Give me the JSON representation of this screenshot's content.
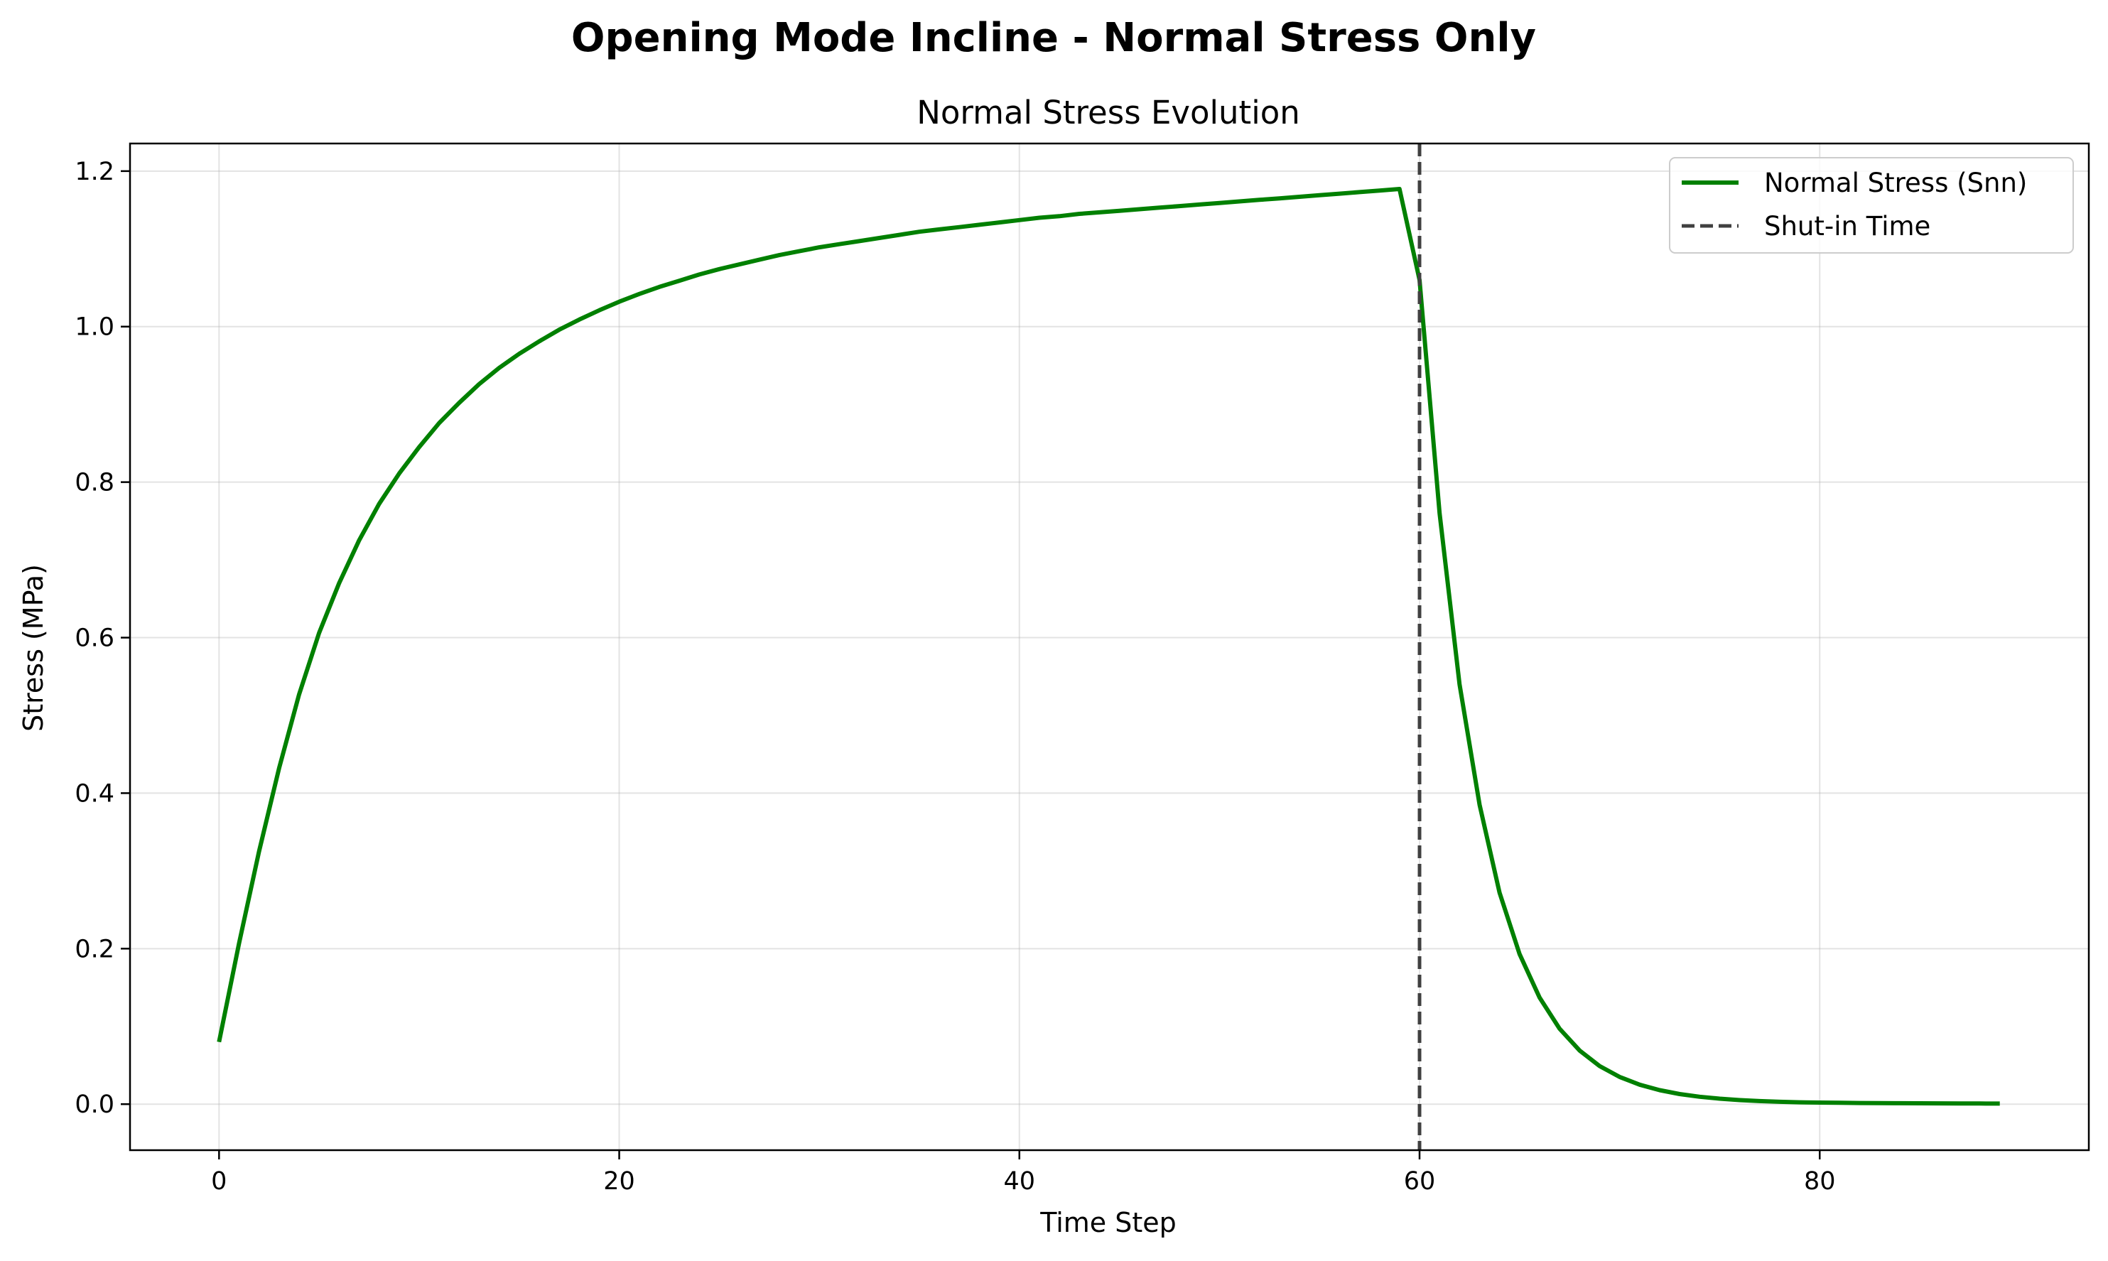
{
  "chart_data": {
    "type": "line",
    "suptitle": "Opening Mode Incline - Normal Stress Only",
    "title": "Normal Stress Evolution",
    "xlabel": "Time Step",
    "ylabel": "Stress (MPa)",
    "xlim": [
      -4.45,
      93.45
    ],
    "ylim": [
      -0.0592,
      1.2355
    ],
    "xticks": [
      0,
      20,
      40,
      60,
      80
    ],
    "yticks": [
      0.0,
      0.2,
      0.4,
      0.6,
      0.8,
      1.0,
      1.2
    ],
    "grid": true,
    "legend_position": "top-right",
    "series": [
      {
        "name": "Normal Stress (Snn)",
        "color": "#008000",
        "style": "solid",
        "x": [
          0,
          1,
          2,
          3,
          4,
          5,
          6,
          7,
          8,
          9,
          10,
          11,
          12,
          13,
          14,
          15,
          16,
          17,
          18,
          19,
          20,
          21,
          22,
          23,
          24,
          25,
          26,
          27,
          28,
          29,
          30,
          31,
          32,
          33,
          34,
          35,
          36,
          37,
          38,
          39,
          40,
          41,
          42,
          43,
          44,
          45,
          46,
          47,
          48,
          49,
          50,
          51,
          52,
          53,
          54,
          55,
          56,
          57,
          58,
          59,
          60,
          61,
          62,
          63,
          64,
          65,
          66,
          67,
          68,
          69,
          70,
          71,
          72,
          73,
          74,
          75,
          76,
          77,
          78,
          79,
          80,
          81,
          82,
          83,
          84,
          85,
          86,
          87,
          88,
          89
        ],
        "y": [
          0.08,
          0.207,
          0.325,
          0.432,
          0.527,
          0.606,
          0.67,
          0.725,
          0.772,
          0.811,
          0.845,
          0.876,
          0.902,
          0.926,
          0.947,
          0.965,
          0.981,
          0.996,
          1.009,
          1.021,
          1.032,
          1.042,
          1.051,
          1.059,
          1.067,
          1.074,
          1.08,
          1.086,
          1.092,
          1.097,
          1.102,
          1.106,
          1.11,
          1.114,
          1.118,
          1.122,
          1.125,
          1.128,
          1.131,
          1.134,
          1.137,
          1.14,
          1.142,
          1.145,
          1.147,
          1.149,
          1.151,
          1.153,
          1.155,
          1.157,
          1.159,
          1.161,
          1.163,
          1.165,
          1.167,
          1.169,
          1.171,
          1.173,
          1.175,
          1.177,
          1.06,
          0.76,
          0.54,
          0.385,
          0.272,
          0.193,
          0.137,
          0.097,
          0.069,
          0.049,
          0.035,
          0.025,
          0.018,
          0.013,
          0.0095,
          0.007,
          0.0052,
          0.0039,
          0.003,
          0.0024,
          0.002,
          0.0017,
          0.0015,
          0.0013,
          0.0012,
          0.0011,
          0.001,
          0.0009,
          0.0008,
          0.0007
        ]
      }
    ],
    "vlines": [
      {
        "name": "Shut-in Time",
        "x": 60,
        "color": "#404040",
        "style": "dashed"
      }
    ]
  }
}
